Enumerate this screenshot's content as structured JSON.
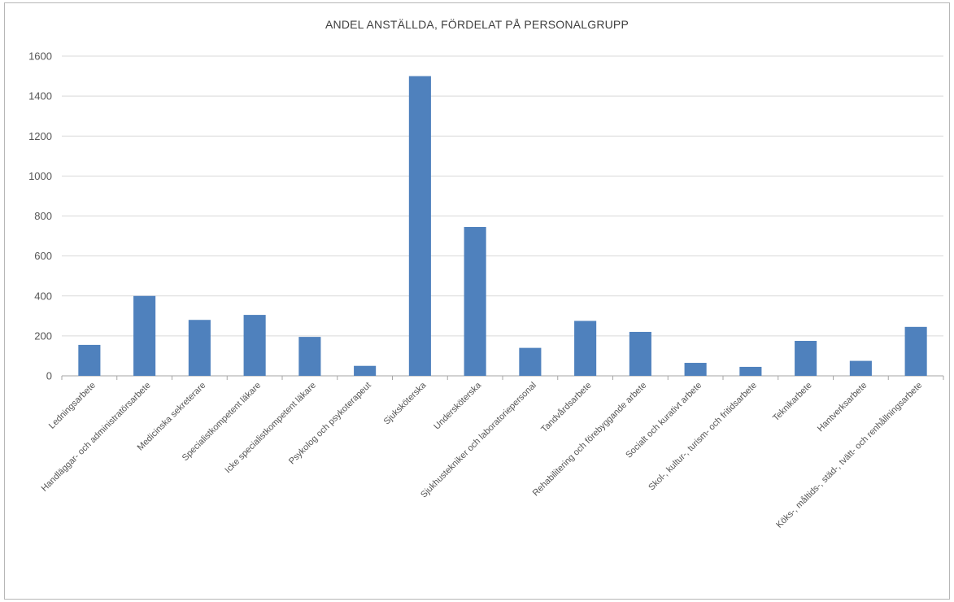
{
  "chart_data": {
    "type": "bar",
    "title": "ANDEL ANSTÄLLDA, FÖRDELAT PÅ PERSONALGRUPP",
    "xlabel": "",
    "ylabel": "",
    "ylim": [
      0,
      1600
    ],
    "yticks": [
      0,
      200,
      400,
      600,
      800,
      1000,
      1200,
      1400,
      1600
    ],
    "grid": true,
    "bar_color": "#4f81bd",
    "categories": [
      "Ledningsarbete",
      "Handläggar- och administratörsarbete",
      "Medicinska sekreterare",
      "Specialistkompetent läkare",
      "Icke specialistkompetent läkare",
      "Psykolog och psykoterapeut",
      "Sjuksköterska",
      "Undersköterska",
      "Sjukhustekniker och laboratoriepersonal",
      "Tandvårdsarbete",
      "Rehabilitering och förebyggande arbete",
      "Socialt och kurativt arbete",
      "Skol-, kultur-, turism- och fritidsarbete",
      "Teknikarbete",
      "Hantverksarbete",
      "Köks-, måltids-, städ-, tvätt- och renhållningsarbete"
    ],
    "values": [
      155,
      400,
      280,
      305,
      195,
      50,
      1500,
      745,
      140,
      275,
      220,
      65,
      45,
      175,
      75,
      245
    ]
  }
}
